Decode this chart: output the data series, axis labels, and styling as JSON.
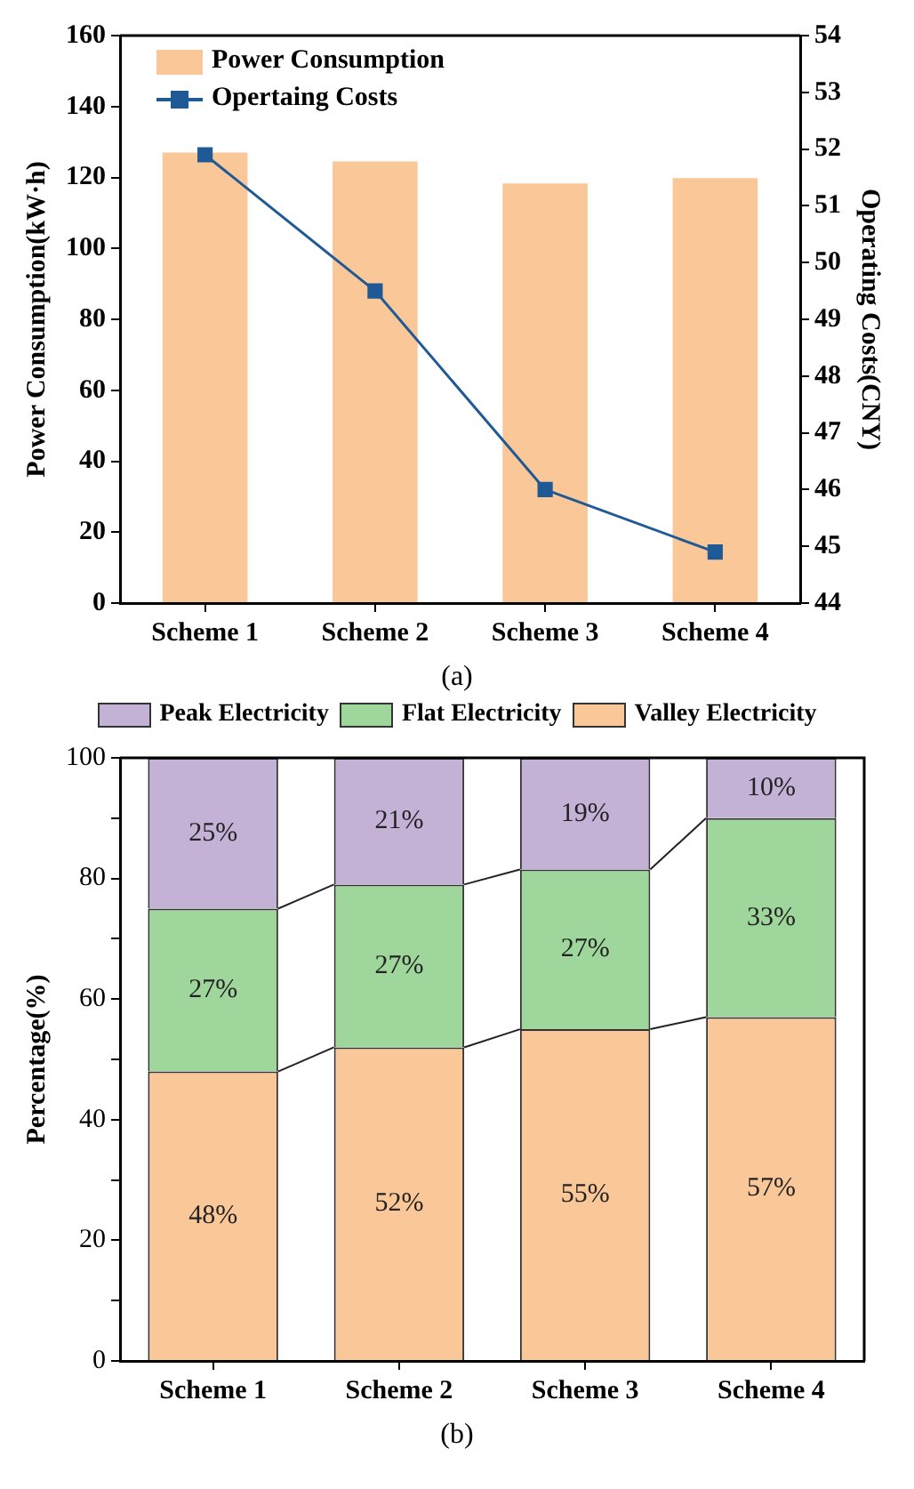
{
  "chart_data": [
    {
      "type": "bar",
      "categories": [
        "Scheme 1",
        "Scheme 2",
        "Scheme 3",
        "Scheme 4"
      ],
      "ylabel": "Power Consumption(kW·h)",
      "y2label": "Operating Costs(CNY)",
      "series": [
        {
          "name": "Power Consumption",
          "color": "#fac898",
          "values": [
            127,
            124.5,
            118.3,
            119.8
          ]
        },
        {
          "name": "Opertaing Costs",
          "type": "line",
          "axis": "y2",
          "color": "#1f5a96",
          "values": [
            51.9,
            49.5,
            46.0,
            44.9
          ]
        }
      ],
      "ylim": [
        0,
        160
      ],
      "yticks": [
        0,
        20,
        40,
        60,
        80,
        100,
        120,
        140,
        160
      ],
      "y2lim": [
        44,
        54
      ],
      "y2ticks": [
        44,
        45,
        46,
        47,
        48,
        49,
        50,
        51,
        52,
        53,
        54
      ],
      "legend": "top left",
      "marker": "square",
      "annotations": [
        "(a)"
      ]
    },
    {
      "type": "bar",
      "stacked": true,
      "categories": [
        "Scheme 1",
        "Scheme 2",
        "Scheme 3",
        "Scheme 4"
      ],
      "ylabel": "Percentage(%)",
      "series": [
        {
          "name": "Valley Electricity",
          "color": "#fac898",
          "values": [
            48,
            52,
            55,
            57
          ],
          "value_labels": [
            "48%",
            "52%",
            "55%",
            "57%"
          ]
        },
        {
          "name": "Flat Electricity",
          "color": "#9fd69c",
          "values": [
            27,
            27,
            26.5,
            33
          ],
          "value_labels": [
            "27%",
            "27%",
            "27%",
            "33%"
          ]
        },
        {
          "name": "Peak Electricity",
          "color": "#c3b1d6",
          "values": [
            25,
            21,
            18.5,
            10
          ],
          "value_labels": [
            "25%",
            "21%",
            "19%",
            "10%"
          ]
        }
      ],
      "ylim": [
        0,
        100
      ],
      "yticks": [
        0,
        {
          "value": 10,
          "label": null
        },
        20,
        {
          "value": 30,
          "label": null
        },
        40,
        {
          "value": 50,
          "label": null
        },
        60,
        {
          "value": 70,
          "label": null
        },
        80,
        {
          "value": 90,
          "label": null
        },
        100
      ],
      "legend": "top",
      "annotations": [
        "(b)"
      ]
    }
  ]
}
